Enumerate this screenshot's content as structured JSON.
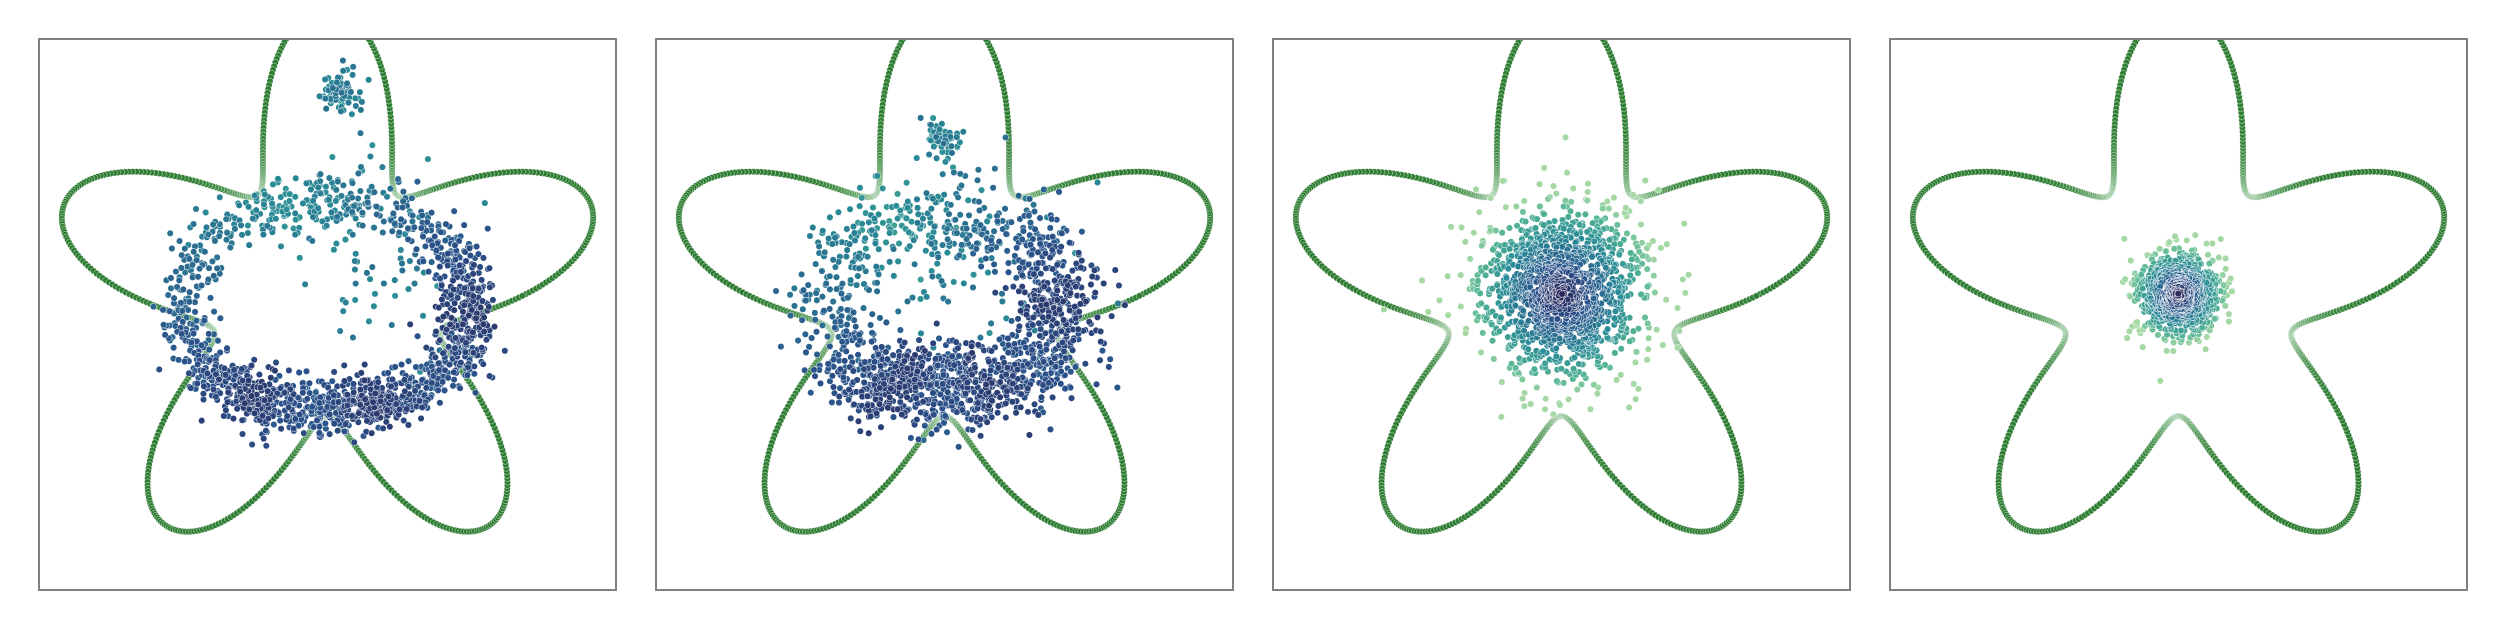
{
  "chart_data": [
    {
      "type": "scatter",
      "title": "",
      "xlabel": "",
      "ylabel": "",
      "xlim": [
        -1.45,
        1.45
      ],
      "ylim": [
        -1.45,
        1.25
      ],
      "grid": false,
      "boundary": {
        "shape": "five-lobed star (rounded)",
        "base_radius": 1.0,
        "lobe_amplitude": 0.4,
        "lobes": 5,
        "color": "#2e7d32",
        "fade_color": "#a8d5ae"
      },
      "point_cloud": {
        "count": 1600,
        "pattern": "ring",
        "ring_radius": 0.72,
        "radial_spread": 0.07,
        "dense_sectors_deg": [
          -130,
          -65,
          -5
        ],
        "extra_clusters": [
          {
            "x": 0.07,
            "y": 0.99,
            "spread": 0.05,
            "count": 70
          },
          {
            "x": 0.2,
            "y": 0.2,
            "spread": 0.25,
            "count": 80
          }
        ],
        "colormap": "crest"
      }
    },
    {
      "type": "scatter",
      "title": "",
      "xlabel": "",
      "ylabel": "",
      "xlim": [
        -1.45,
        1.45
      ],
      "ylim": [
        -1.45,
        1.25
      ],
      "grid": false,
      "boundary": {
        "shape": "five-lobed star (rounded)",
        "base_radius": 1.0,
        "lobe_amplitude": 0.4,
        "lobes": 5,
        "color": "#2e7d32",
        "fade_color": "#a8d5ae"
      },
      "point_cloud": {
        "count": 1600,
        "pattern": "ring",
        "ring_radius": 0.6,
        "radial_spread": 0.11,
        "dense_sectors_deg": [
          -120,
          -60,
          0
        ],
        "extra_clusters": [
          {
            "x": -0.02,
            "y": 0.75,
            "spread": 0.06,
            "count": 60
          },
          {
            "x": 0.1,
            "y": 0.1,
            "spread": 0.25,
            "count": 80
          }
        ],
        "colormap": "crest"
      }
    },
    {
      "type": "scatter",
      "title": "",
      "xlabel": "",
      "ylabel": "",
      "xlim": [
        -1.45,
        1.45
      ],
      "ylim": [
        -1.45,
        1.25
      ],
      "grid": false,
      "boundary": {
        "shape": "five-lobed star (rounded)",
        "base_radius": 1.0,
        "lobe_amplitude": 0.4,
        "lobes": 5,
        "color": "#2e7d32",
        "fade_color": "#a8d5ae"
      },
      "point_cloud": {
        "count": 1400,
        "pattern": "gaussian",
        "center": [
          0.0,
          0.0
        ],
        "spread": 0.2,
        "colormap": "crest"
      }
    },
    {
      "type": "scatter",
      "title": "",
      "xlabel": "",
      "ylabel": "",
      "xlim": [
        -1.45,
        1.45
      ],
      "ylim": [
        -1.45,
        1.25
      ],
      "grid": false,
      "boundary": {
        "shape": "five-lobed star (rounded)",
        "base_radius": 1.0,
        "lobe_amplitude": 0.4,
        "lobes": 5,
        "color": "#2e7d32",
        "fade_color": "#a8d5ae"
      },
      "point_cloud": {
        "count": 900,
        "pattern": "gaussian",
        "center": [
          0.0,
          0.0
        ],
        "spread": 0.1,
        "colormap": "crest"
      }
    }
  ],
  "colors": {
    "frame": "#808080",
    "background": "#ffffff",
    "point_edge": "#ffffff"
  }
}
